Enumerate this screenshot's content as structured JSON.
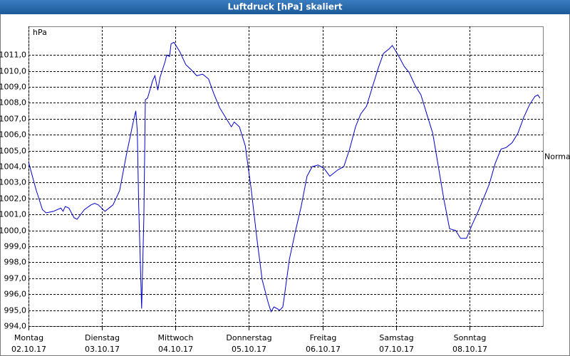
{
  "chart_data": {
    "type": "line",
    "title": "Luftdruck [hPa] skaliert",
    "y_label": "hPa",
    "annotation": {
      "text": "Normal",
      "y": 1004.6
    },
    "xlim": [
      0,
      7
    ],
    "xticks": [
      {
        "value": 0,
        "label": "Montag"
      },
      {
        "value": 1,
        "label": "Dienstag"
      },
      {
        "value": 2,
        "label": "Mittwoch"
      },
      {
        "value": 3,
        "label": "Donnerstag"
      },
      {
        "value": 4,
        "label": "Freitag"
      },
      {
        "value": 5,
        "label": "Samstag"
      },
      {
        "value": 6,
        "label": "Sonntag"
      }
    ],
    "xtick_dates": [
      "02.10.17",
      "03.10.17",
      "04.10.17",
      "05.10.17",
      "06.10.17",
      "07.10.17",
      "08.10.17"
    ],
    "ylim": [
      994,
      1012.8
    ],
    "yticks": [
      {
        "value": 994,
        "label": "994,0"
      },
      {
        "value": 995,
        "label": "995,0"
      },
      {
        "value": 996,
        "label": "996,0"
      },
      {
        "value": 997,
        "label": "997,0"
      },
      {
        "value": 998,
        "label": "998,0"
      },
      {
        "value": 999,
        "label": "999,0"
      },
      {
        "value": 1000,
        "label": "1000,0"
      },
      {
        "value": 1001,
        "label": "1001,0"
      },
      {
        "value": 1002,
        "label": "1002,0"
      },
      {
        "value": 1003,
        "label": "1003,0"
      },
      {
        "value": 1004,
        "label": "1004,0"
      },
      {
        "value": 1005,
        "label": "1005,0"
      },
      {
        "value": 1006,
        "label": "1006,0"
      },
      {
        "value": 1007,
        "label": "1007,0"
      },
      {
        "value": 1008,
        "label": "1008,0"
      },
      {
        "value": 1009,
        "label": "1009,0"
      },
      {
        "value": 1010,
        "label": "1010,0"
      },
      {
        "value": 1011,
        "label": "1011,0"
      }
    ],
    "grid": true,
    "color": "#0000cc",
    "x": [
      0.0,
      0.1,
      0.19,
      0.24,
      0.34,
      0.44,
      0.47,
      0.5,
      0.55,
      0.62,
      0.66,
      0.76,
      0.85,
      0.9,
      0.95,
      1.04,
      1.15,
      1.24,
      1.33,
      1.42,
      1.46,
      1.48,
      1.5,
      1.54,
      1.57,
      1.59,
      1.62,
      1.69,
      1.72,
      1.76,
      1.79,
      1.86,
      1.88,
      1.92,
      1.94,
      1.98,
      2.06,
      2.14,
      2.21,
      2.29,
      2.37,
      2.45,
      2.52,
      2.6,
      2.68,
      2.76,
      2.8,
      2.87,
      2.95,
      3.03,
      3.11,
      3.18,
      3.26,
      3.3,
      3.34,
      3.42,
      3.46,
      3.48,
      3.55,
      3.63,
      3.71,
      3.79,
      3.86,
      3.94,
      4.02,
      4.1,
      4.21,
      4.29,
      4.37,
      4.45,
      4.52,
      4.6,
      4.68,
      4.76,
      4.83,
      4.91,
      4.95,
      5.03,
      5.11,
      5.18,
      5.26,
      5.34,
      5.42,
      5.5,
      5.57,
      5.65,
      5.73,
      5.81,
      5.88,
      5.96,
      6.04,
      6.12,
      6.19,
      6.27,
      6.35,
      6.43,
      6.5,
      6.58,
      6.66,
      6.74,
      6.82,
      6.89,
      6.93,
      6.96
    ],
    "values": [
      1004.3,
      1002.6,
      1001.3,
      1001.1,
      1001.2,
      1001.4,
      1001.2,
      1001.5,
      1001.4,
      1000.8,
      1000.7,
      1001.3,
      1001.6,
      1001.7,
      1001.6,
      1001.2,
      1001.6,
      1002.5,
      1004.7,
      1006.7,
      1007.5,
      1006.2,
      1001.5,
      995.1,
      1000.8,
      1008.2,
      1008.3,
      1009.4,
      1009.7,
      1008.8,
      1009.6,
      1010.6,
      1011.0,
      1010.9,
      1011.7,
      1011.8,
      1011.2,
      1010.4,
      1010.1,
      1009.7,
      1009.8,
      1009.5,
      1008.6,
      1007.7,
      1007.1,
      1006.5,
      1006.8,
      1006.5,
      1005.3,
      1002.6,
      999.4,
      996.9,
      995.5,
      994.9,
      995.2,
      995.0,
      995.2,
      995.8,
      998.2,
      999.9,
      1001.5,
      1003.4,
      1004.0,
      1004.1,
      1003.9,
      1003.4,
      1003.8,
      1004.0,
      1005.1,
      1006.5,
      1007.3,
      1007.8,
      1009.0,
      1010.2,
      1011.1,
      1011.4,
      1011.6,
      1011.0,
      1010.3,
      1009.9,
      1009.1,
      1008.5,
      1007.3,
      1006.1,
      1004.2,
      1002.0,
      1000.1,
      1000.0,
      999.5,
      999.5,
      1000.4,
      1001.2,
      1002.0,
      1002.9,
      1004.2,
      1005.1,
      1005.2,
      1005.5,
      1006.1,
      1007.1,
      1007.9,
      1008.4,
      1008.5,
      1008.3
    ]
  }
}
